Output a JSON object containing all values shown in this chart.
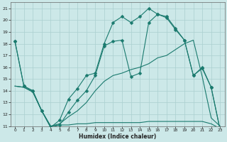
{
  "title": "",
  "xlabel": "Humidex (Indice chaleur)",
  "bg_color": "#cce8e8",
  "line_color": "#1a7a6e",
  "grid_color": "#aacfcf",
  "xlim": [
    -0.5,
    23.5
  ],
  "ylim": [
    11,
    21.5
  ],
  "xticks": [
    0,
    1,
    2,
    3,
    4,
    5,
    6,
    7,
    8,
    9,
    10,
    11,
    12,
    13,
    14,
    15,
    16,
    17,
    18,
    19,
    20,
    21,
    22,
    23
  ],
  "yticks": [
    11,
    12,
    13,
    14,
    15,
    16,
    17,
    18,
    19,
    20,
    21
  ],
  "line_upper": {
    "x": [
      0,
      1,
      2,
      3,
      4,
      5,
      6,
      7,
      8,
      9,
      10,
      11,
      12,
      13,
      14,
      15,
      16,
      17,
      18,
      19,
      20,
      21,
      22,
      23
    ],
    "y": [
      18.2,
      14.4,
      14.0,
      12.3,
      10.9,
      11.1,
      12.2,
      13.2,
      14.0,
      15.3,
      17.8,
      18.2,
      18.3,
      15.2,
      15.5,
      19.8,
      20.5,
      20.3,
      19.3,
      18.3,
      15.3,
      16.0,
      14.3,
      10.7
    ],
    "has_markers": true
  },
  "line_peak": {
    "x": [
      0,
      1,
      2,
      3,
      4,
      5,
      6,
      7,
      8,
      9,
      10,
      11,
      12,
      13,
      14,
      15,
      16,
      17,
      18,
      19,
      20,
      21,
      22,
      23
    ],
    "y": [
      18.2,
      14.4,
      14.0,
      12.3,
      10.9,
      11.5,
      13.3,
      14.2,
      15.3,
      15.5,
      18.0,
      19.8,
      20.3,
      19.8,
      20.3,
      21.0,
      20.5,
      20.2,
      19.2,
      18.3,
      15.3,
      15.9,
      14.3,
      10.7
    ],
    "has_markers": true
  },
  "line_mid": {
    "x": [
      0,
      1,
      2,
      3,
      4,
      5,
      6,
      7,
      8,
      9,
      10,
      11,
      12,
      13,
      14,
      15,
      16,
      17,
      18,
      19,
      20,
      21,
      22,
      23
    ],
    "y": [
      14.4,
      14.3,
      13.9,
      12.3,
      11.0,
      11.2,
      11.8,
      12.3,
      13.0,
      14.0,
      14.8,
      15.3,
      15.5,
      15.8,
      16.0,
      16.3,
      16.8,
      17.0,
      17.5,
      18.0,
      18.3,
      15.2,
      11.7,
      11.0
    ],
    "has_markers": false
  },
  "line_lower": {
    "x": [
      0,
      1,
      2,
      3,
      4,
      5,
      6,
      7,
      8,
      9,
      10,
      11,
      12,
      13,
      14,
      15,
      16,
      17,
      18,
      19,
      20,
      21,
      22,
      23
    ],
    "y": [
      14.4,
      14.3,
      13.9,
      12.3,
      11.0,
      11.1,
      11.1,
      11.2,
      11.2,
      11.3,
      11.3,
      11.3,
      11.3,
      11.3,
      11.3,
      11.4,
      11.4,
      11.4,
      11.4,
      11.4,
      11.4,
      11.4,
      11.2,
      10.8
    ],
    "has_markers": false
  }
}
